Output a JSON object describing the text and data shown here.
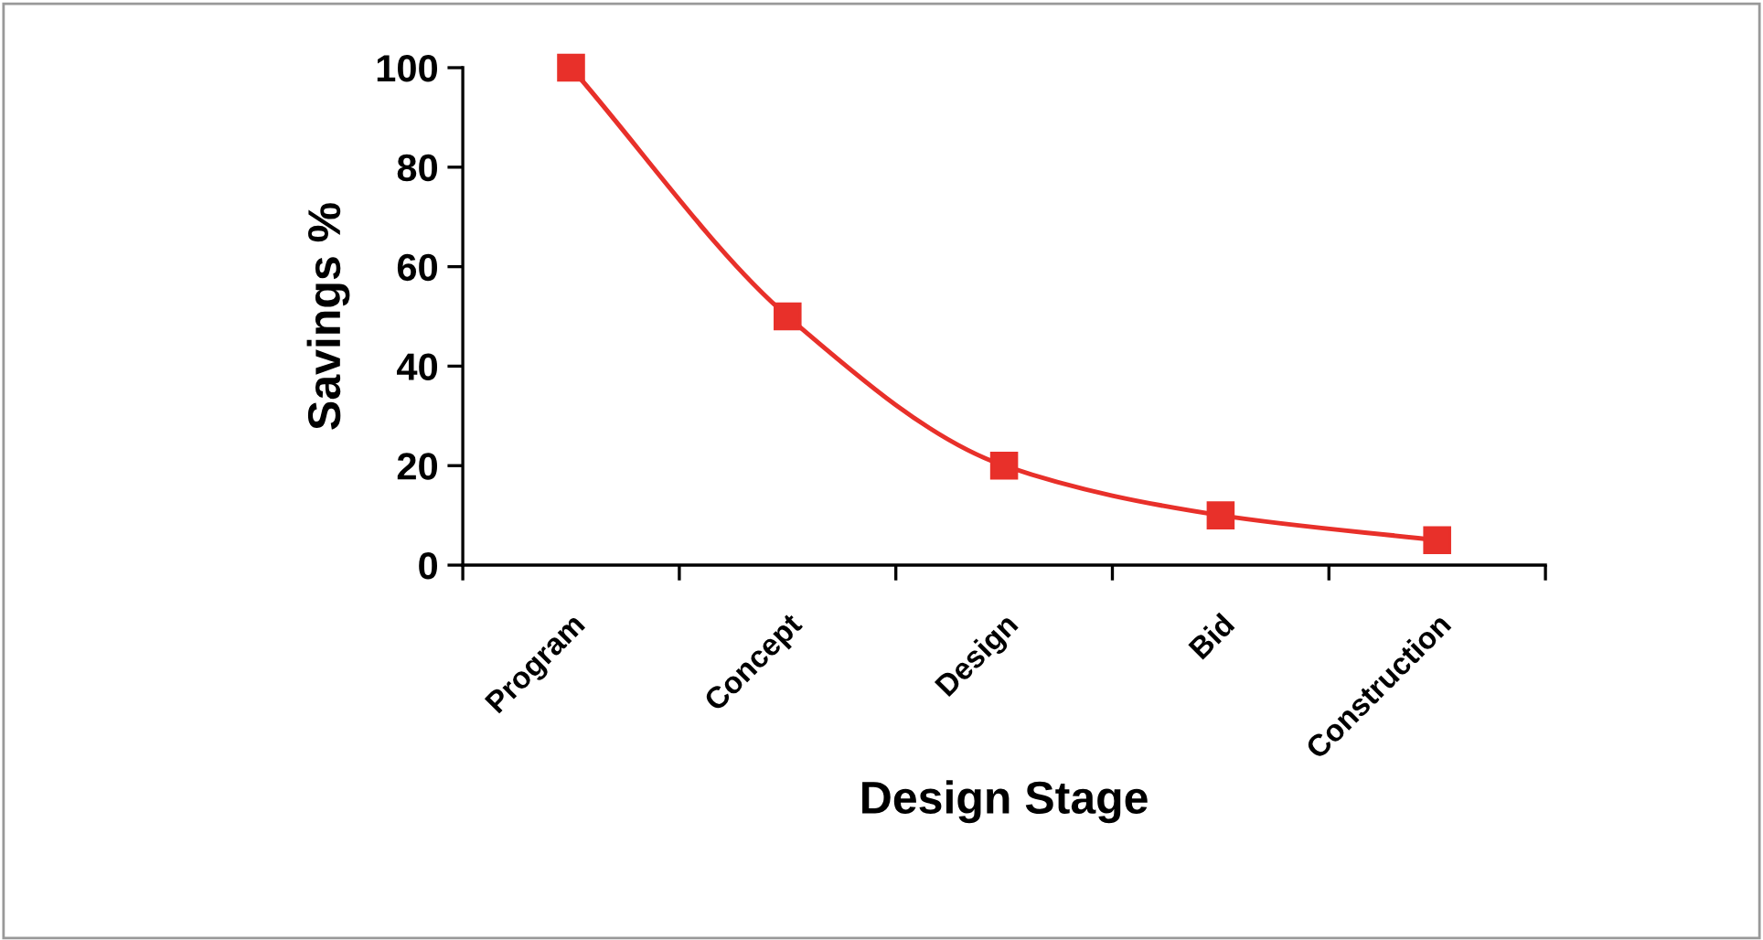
{
  "chart_data": {
    "type": "line",
    "xlabel": "Design Stage",
    "ylabel": "Savings %",
    "categories": [
      "Program",
      "Concept",
      "Design",
      "Bid",
      "Construction"
    ],
    "series": [
      {
        "color": "#e8302a",
        "values": [
          100,
          50,
          20,
          10,
          5
        ]
      }
    ],
    "ylim": [
      0,
      100
    ],
    "yticks": [
      0,
      20,
      40,
      60,
      80,
      100
    ],
    "marker": "square",
    "grid": false,
    "legend": false
  }
}
